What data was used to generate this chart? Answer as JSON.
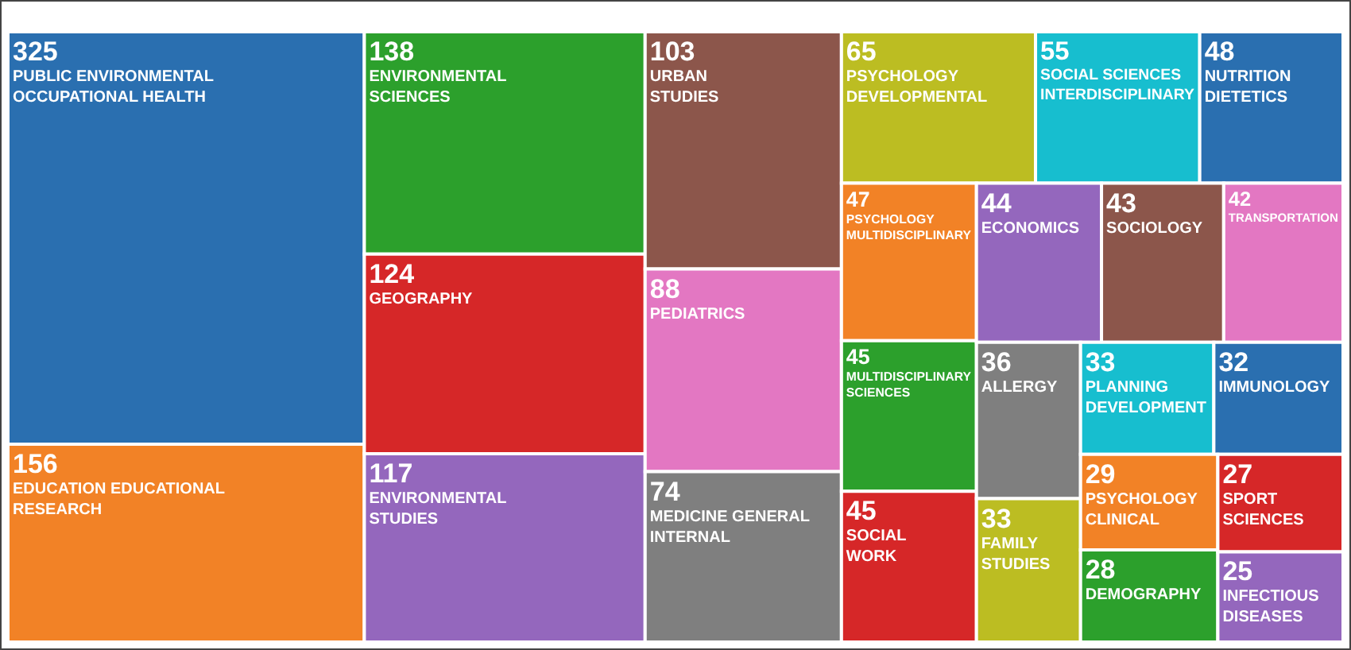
{
  "chart_data": {
    "type": "other",
    "data_labels": true,
    "categories": [
      "PUBLIC ENVIRONMENTAL OCCUPATIONAL HEALTH",
      "EDUCATION EDUCATIONAL RESEARCH",
      "ENVIRONMENTAL SCIENCES",
      "GEOGRAPHY",
      "ENVIRONMENTAL STUDIES",
      "URBAN STUDIES",
      "PEDIATRICS",
      "MEDICINE GENERAL INTERNAL",
      "PSYCHOLOGY DEVELOPMENTAL",
      "SOCIAL SCIENCES INTERDISCIPLINARY",
      "NUTRITION DIETETICS",
      "PSYCHOLOGY MULTIDISCIPLINARY",
      "MULTIDISCIPLINARY SCIENCES",
      "SOCIAL WORK",
      "ECONOMICS",
      "SOCIOLOGY",
      "TRANSPORTATION",
      "ALLERGY",
      "FAMILY STUDIES",
      "PLANNING DEVELOPMENT",
      "IMMUNOLOGY",
      "PSYCHOLOGY CLINICAL",
      "DEMOGRAPHY",
      "SPORT SCIENCES",
      "INFECTIOUS DISEASES"
    ],
    "values": [
      325,
      156,
      138,
      124,
      117,
      103,
      88,
      74,
      65,
      55,
      48,
      47,
      45,
      45,
      44,
      43,
      42,
      36,
      33,
      33,
      32,
      29,
      28,
      27,
      25
    ],
    "colors": [
      "#2a6fb0",
      "#f28226",
      "#2ca02c",
      "#d62728",
      "#9467bd",
      "#8c564b",
      "#e377c2",
      "#7f7f7f",
      "#bcbd22",
      "#17becf",
      "#2a6fb0",
      "#f28226",
      "#2ca02c",
      "#d62728",
      "#9467bd",
      "#8c564b",
      "#e377c2",
      "#7f7f7f",
      "#bcbd22",
      "#17becf",
      "#2a6fb0",
      "#f28226",
      "#2ca02c",
      "#d62728",
      "#9467bd"
    ]
  }
}
